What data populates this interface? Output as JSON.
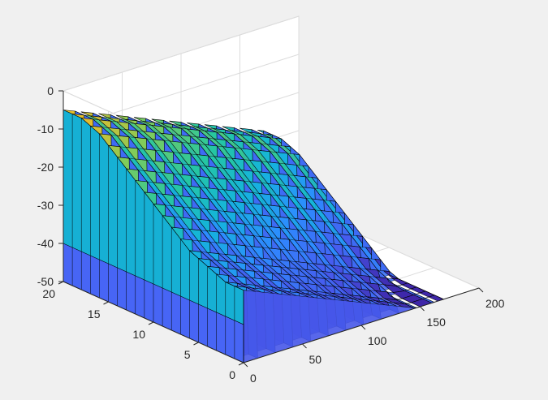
{
  "chart_data": {
    "type": "surface",
    "title": "",
    "xlabel": "",
    "ylabel": "",
    "zlabel": "",
    "xlim": [
      0,
      200
    ],
    "ylim": [
      0,
      20
    ],
    "zlim": [
      -50,
      0
    ],
    "grid": true,
    "colormap": "parula",
    "x_ticks": [
      "0",
      "50",
      "100",
      "150",
      "200"
    ],
    "y_ticks": [
      "0",
      "5",
      "10",
      "15",
      "20"
    ],
    "z_ticks": [
      "0",
      "-10",
      "-20",
      "-30",
      "-40",
      "-50"
    ],
    "x_tick_values": [
      0,
      50,
      100,
      150,
      200
    ],
    "y_tick_values": [
      0,
      5,
      10,
      15,
      20
    ],
    "z_tick_values": [
      0,
      -10,
      -20,
      -30,
      -40,
      -50
    ],
    "x_range_data": [
      0,
      170
    ],
    "y_range_data": [
      0,
      20
    ],
    "peak": {
      "x": 10,
      "y": 20,
      "z": -5
    },
    "ridge_levels_along_y": [
      -31,
      -31,
      -31,
      -30,
      -29,
      -28,
      -27,
      -25,
      -23,
      -21,
      -19,
      -17,
      -15,
      -13,
      -11,
      -9,
      -7,
      -6,
      -5,
      -5,
      -5
    ],
    "slope_along_x_per_unit": -0.13,
    "floor_level": -50
  },
  "colors": {
    "background": "#f0f0f0",
    "axes_face": "#ffffff",
    "grid": "#dcdcdc",
    "axis_line": "#262626",
    "edge": "#000000"
  }
}
